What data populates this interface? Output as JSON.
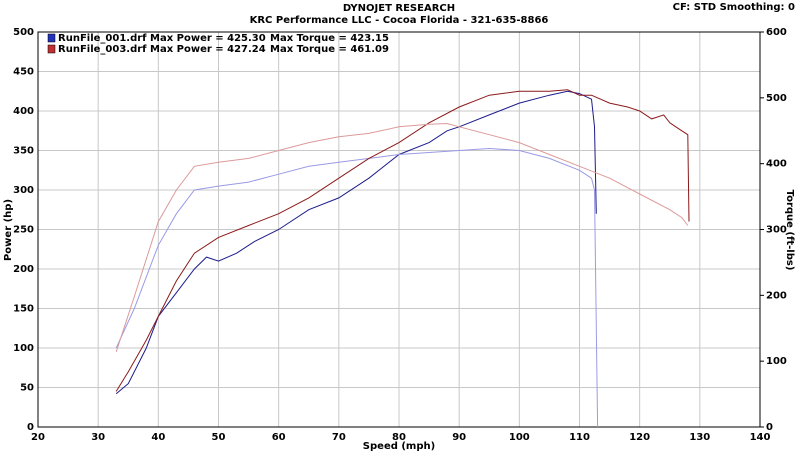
{
  "chart_data": {
    "type": "line",
    "title": "DYNOJET RESEARCH",
    "subtitle": "KRC Performance LLC - Cocoa Florida - 321-635-8866",
    "settings_label": "CF: STD   Smoothing: 0",
    "xlabel": "Speed (mph)",
    "ylabel": "Power (hp)",
    "y2label": "Torque (ft-lbs)",
    "xlim": [
      20,
      140
    ],
    "xticks": [
      20,
      30,
      40,
      50,
      60,
      70,
      80,
      90,
      100,
      110,
      120,
      130,
      140
    ],
    "ylim": [
      0,
      500
    ],
    "yticks": [
      0,
      50,
      100,
      150,
      200,
      250,
      300,
      350,
      400,
      450,
      500
    ],
    "y2lim": [
      0,
      600
    ],
    "y2ticks": [
      0,
      100,
      200,
      300,
      400,
      500,
      600
    ],
    "grid": true,
    "legend": [
      {
        "label": "RunFile_001.drf Max Power = 425.30",
        "torque_label": "Max Torque = 423.15",
        "color": "#2233bb"
      },
      {
        "label": "RunFile_003.drf Max Power = 427.24",
        "torque_label": "Max Torque = 461.09",
        "color": "#c03030"
      }
    ],
    "series": [
      {
        "color": "#1c1c8c",
        "x": [
          33,
          35,
          38,
          40,
          43,
          46,
          48,
          50,
          53,
          56,
          60,
          65,
          70,
          75,
          80,
          85,
          88,
          90,
          95,
          100,
          105,
          108,
          110,
          112,
          112.5,
          112.8
        ],
        "values": [
          42,
          55,
          100,
          140,
          170,
          200,
          215,
          210,
          220,
          235,
          250,
          275,
          290,
          315,
          345,
          360,
          375,
          380,
          395,
          410,
          420,
          425,
          422,
          415,
          380,
          270
        ]
      },
      {
        "color": "#9a9ae6",
        "axis": "y2",
        "x": [
          33,
          36,
          40,
          43,
          46,
          50,
          55,
          60,
          65,
          70,
          80,
          90,
          95,
          100,
          105,
          110,
          112,
          112.5,
          113
        ],
        "values": [
          120,
          180,
          276,
          324,
          360,
          366,
          372,
          384,
          396,
          402,
          414,
          420,
          423,
          420,
          408,
          390,
          378,
          360,
          0
        ]
      },
      {
        "color": "#8b1a1a",
        "x": [
          33,
          35,
          38,
          40,
          43,
          46,
          50,
          55,
          60,
          65,
          70,
          75,
          80,
          85,
          90,
          95,
          100,
          105,
          108,
          110,
          112,
          115,
          118,
          120,
          122,
          124,
          125,
          126,
          127,
          128,
          128.2
        ],
        "values": [
          45,
          70,
          110,
          140,
          185,
          220,
          240,
          255,
          270,
          290,
          315,
          340,
          360,
          385,
          405,
          420,
          425,
          425,
          427,
          420,
          420,
          410,
          405,
          400,
          390,
          395,
          385,
          380,
          375,
          370,
          260
        ]
      },
      {
        "color": "#dc9a9a",
        "axis": "y2",
        "x": [
          33,
          36,
          40,
          43,
          46,
          50,
          55,
          60,
          65,
          70,
          75,
          80,
          85,
          88,
          90,
          95,
          100,
          105,
          110,
          115,
          120,
          125,
          127,
          128
        ],
        "values": [
          114,
          198,
          312,
          360,
          396,
          402,
          408,
          420,
          432,
          441,
          446,
          456,
          460,
          461,
          456,
          444,
          432,
          414,
          396,
          378,
          354,
          330,
          318,
          306
        ]
      }
    ]
  }
}
